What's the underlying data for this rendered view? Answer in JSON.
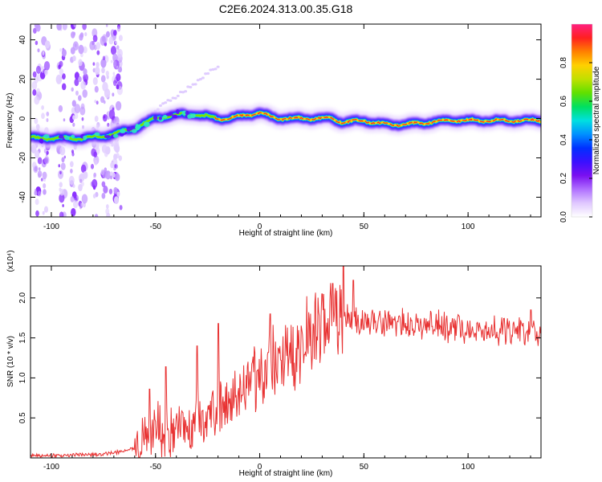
{
  "figure": {
    "title": "C2E6.2024.313.00.35.G18"
  },
  "chart_data": [
    {
      "type": "heatmap",
      "xlabel": "Height of straight line (km)",
      "ylabel": "Frequency (Hz)",
      "xlim": [
        -110,
        135
      ],
      "ylim": [
        -50,
        48
      ],
      "xticks": [
        -100,
        -50,
        0,
        50,
        100
      ],
      "yticks": [
        -40,
        -20,
        0,
        20,
        40
      ],
      "grid": false,
      "ridge": {
        "x": [
          -110,
          -95,
          -85,
          -75,
          -67,
          -60,
          -55,
          -50,
          -45,
          -40,
          -35,
          -30,
          -25,
          -20,
          -15,
          -10,
          -5,
          0,
          5,
          10,
          15,
          20,
          25,
          30,
          35,
          40,
          50,
          60,
          70,
          80,
          90,
          100,
          110,
          120,
          135
        ],
        "y": [
          -10,
          -10,
          -10,
          -9,
          -7,
          -5,
          -2,
          0,
          1,
          2,
          2,
          2,
          1,
          0,
          0,
          1,
          2,
          3,
          1,
          0,
          0,
          0,
          0,
          0,
          0,
          -2,
          -1,
          -3,
          -3,
          -2,
          -1,
          -1,
          -1,
          -1,
          -1
        ]
      },
      "colorbar": {
        "label": "Normalized spectral amplitude",
        "range": [
          0,
          1
        ],
        "ticks": [
          "0.0",
          "0.2",
          "0.4",
          "0.6",
          "0.8"
        ],
        "colormap": [
          "#ffffff",
          "#e0c8ff",
          "#b070ff",
          "#7a10f0",
          "#3a10ff",
          "#0030ff",
          "#0090ff",
          "#00e0e0",
          "#00e060",
          "#60e000",
          "#c0e000",
          "#ffd000",
          "#ff8000",
          "#ff2020",
          "#ff2080"
        ]
      }
    },
    {
      "type": "line",
      "xlabel": "Height of straight line (km)",
      "ylabel": "SNR (10 * v/v)",
      "yscale_label": "(x10⁴)",
      "xlim": [
        -110,
        135
      ],
      "ylim": [
        0,
        2.4
      ],
      "xticks": [
        -100,
        -50,
        0,
        50,
        100
      ],
      "yticks": [
        "0.5",
        "1.0",
        "1.5",
        "2.0"
      ],
      "line_color": "#e83232",
      "trend": {
        "x": [
          -110,
          -80,
          -70,
          -60,
          -55,
          -50,
          -45,
          -40,
          -35,
          -30,
          -25,
          -20,
          -15,
          -10,
          -5,
          0,
          5,
          10,
          15,
          20,
          25,
          30,
          35,
          40,
          45,
          50,
          60,
          70,
          80,
          90,
          100,
          110,
          120,
          135
        ],
        "y": [
          0.03,
          0.04,
          0.06,
          0.12,
          0.2,
          0.32,
          0.3,
          0.35,
          0.42,
          0.48,
          0.55,
          0.62,
          0.72,
          0.8,
          0.88,
          1.0,
          1.1,
          1.18,
          1.3,
          1.4,
          1.5,
          1.62,
          1.7,
          1.75,
          1.72,
          1.72,
          1.7,
          1.68,
          1.66,
          1.64,
          1.62,
          1.6,
          1.58,
          1.56
        ]
      },
      "peaks": [
        {
          "x": -53,
          "y": 0.86
        },
        {
          "x": -45,
          "y": 1.14
        },
        {
          "x": -30,
          "y": 1.4
        },
        {
          "x": -20,
          "y": 1.68
        },
        {
          "x": 5,
          "y": 1.8
        },
        {
          "x": 30,
          "y": 2.05
        },
        {
          "x": 35,
          "y": 2.18
        },
        {
          "x": 40,
          "y": 2.4
        },
        {
          "x": 45,
          "y": 2.22
        },
        {
          "x": 130,
          "y": 1.85
        }
      ]
    }
  ]
}
